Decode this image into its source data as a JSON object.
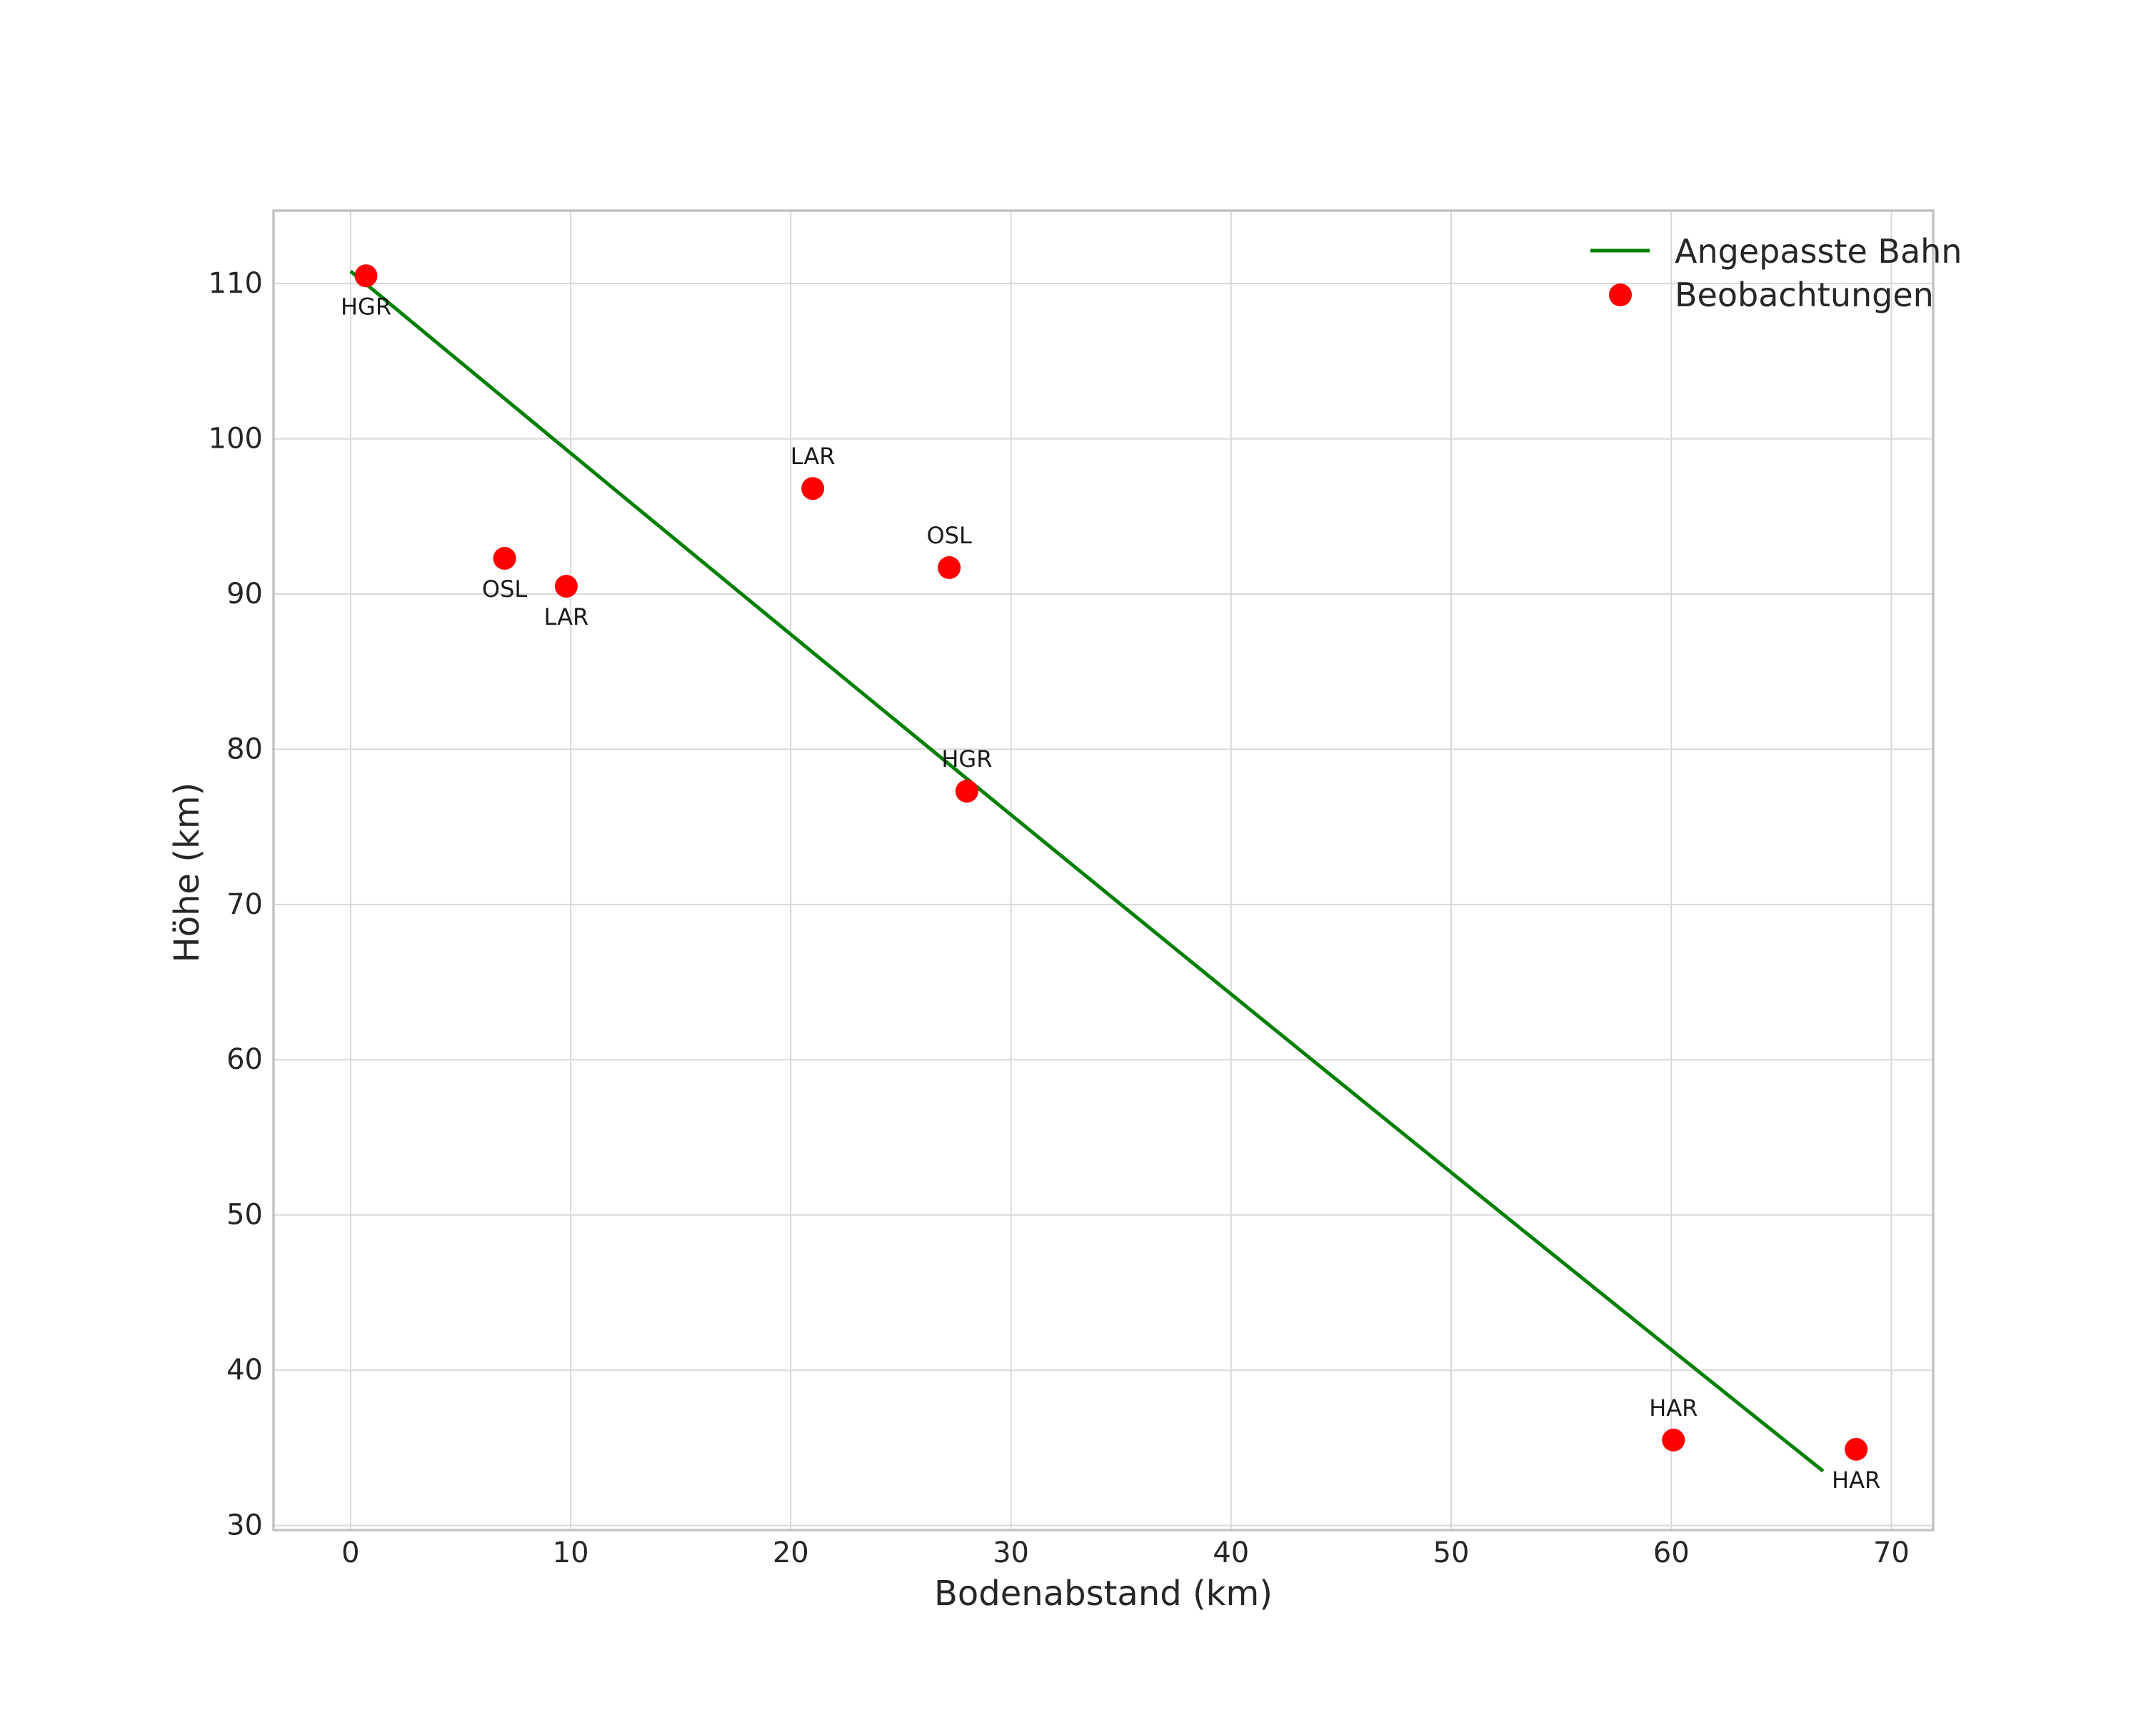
{
  "figure": {
    "background": "#ffffff"
  },
  "chart_data": {
    "type": "scatter",
    "title": "",
    "xlabel": "Bodenabstand (km)",
    "ylabel": "Höhe (km)",
    "xlim": [
      -3.5,
      71.9
    ],
    "ylim": [
      29.7,
      114.7
    ],
    "xticks": [
      0,
      10,
      20,
      30,
      40,
      50,
      60,
      70
    ],
    "yticks": [
      30,
      40,
      50,
      60,
      70,
      80,
      90,
      100,
      110
    ],
    "grid": true,
    "points": [
      {
        "station": "HGR",
        "x": 0.7,
        "y": 110.5,
        "label_pos": "below"
      },
      {
        "station": "OSL",
        "x": 7.0,
        "y": 92.3,
        "label_pos": "below"
      },
      {
        "station": "LAR",
        "x": 9.8,
        "y": 90.5,
        "label_pos": "below"
      },
      {
        "station": "LAR",
        "x": 21.0,
        "y": 96.8,
        "label_pos": "above"
      },
      {
        "station": "OSL",
        "x": 27.2,
        "y": 91.7,
        "label_pos": "above"
      },
      {
        "station": "HGR",
        "x": 28.0,
        "y": 77.3,
        "label_pos": "above"
      },
      {
        "station": "HAR",
        "x": 60.1,
        "y": 35.5,
        "label_pos": "above"
      },
      {
        "station": "HAR",
        "x": 68.4,
        "y": 34.9,
        "label_pos": "below"
      }
    ],
    "fit_line": {
      "x": [
        0.0,
        35.0,
        66.9
      ],
      "y": [
        110.8,
        70.0,
        33.5
      ]
    },
    "legend": {
      "position": "upper-right",
      "entries": [
        {
          "label": "Angepasste Bahn",
          "type": "line",
          "color": "#008000"
        },
        {
          "label": "Beobachtungen",
          "type": "marker",
          "color": "#ff0000"
        }
      ]
    },
    "style": {
      "marker_color": "#ff0000",
      "line_color": "#008000",
      "grid_color": "#d8d8d8",
      "spine_color": "#c3c3c3",
      "text_color": "#262626",
      "annotation_color": "#1a1a1a"
    }
  }
}
